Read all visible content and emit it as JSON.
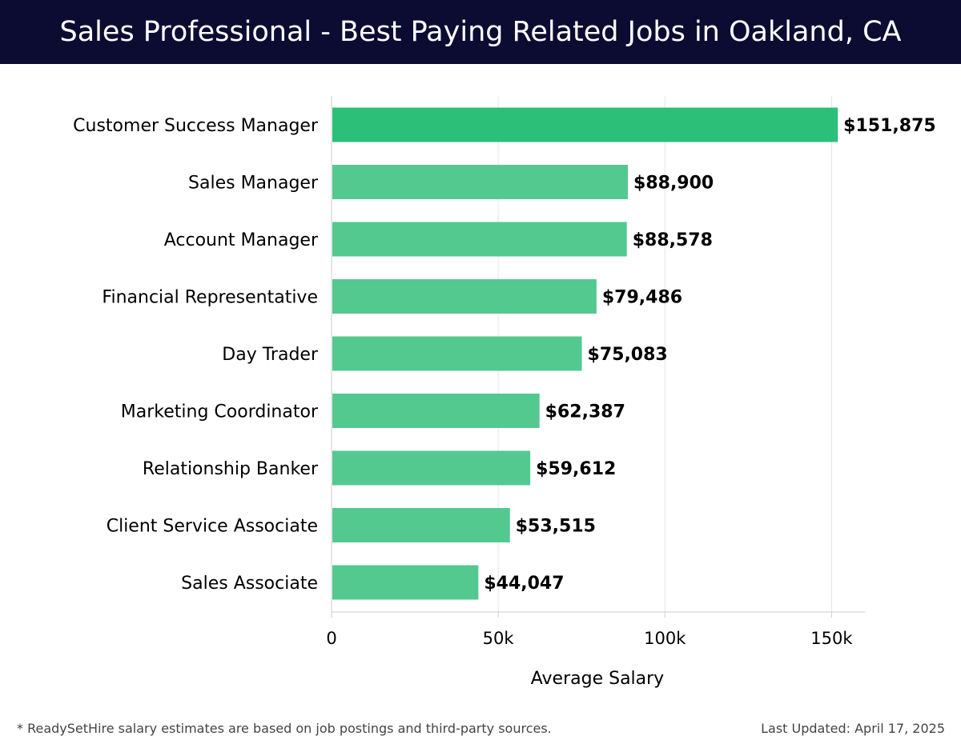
{
  "header": {
    "title": "Sales Professional - Best Paying Related Jobs in Oakland, CA"
  },
  "chart_data": {
    "type": "bar",
    "orientation": "horizontal",
    "categories": [
      "Customer Success Manager",
      "Sales Manager",
      "Account Manager",
      "Financial Representative",
      "Day Trader",
      "Marketing Coordinator",
      "Relationship Banker",
      "Client Service Associate",
      "Sales Associate"
    ],
    "values": [
      151875,
      88900,
      88578,
      79486,
      75083,
      62387,
      59612,
      53515,
      44047
    ],
    "value_labels": [
      "$151,875",
      "$88,900",
      "$88,578",
      "$79,486",
      "$75,083",
      "$62,387",
      "$59,612",
      "$53,515",
      "$44,047"
    ],
    "xlabel": "Average Salary",
    "ylabel": "",
    "xlim": [
      0,
      160000
    ],
    "xticks": [
      0,
      50000,
      100000,
      150000
    ],
    "xtick_labels": [
      "0",
      "50k",
      "100k",
      "150k"
    ],
    "grid": true,
    "colors": {
      "top_bar": "#2bbf78",
      "bar": "#53c990",
      "grid": "#e3e3e3",
      "axis": "#cccccc",
      "title_bg": "#0c0c33"
    }
  },
  "footer": {
    "note": "* ReadySetHire salary estimates are based on job postings and third-party sources.",
    "updated": "Last Updated: April 17, 2025"
  }
}
